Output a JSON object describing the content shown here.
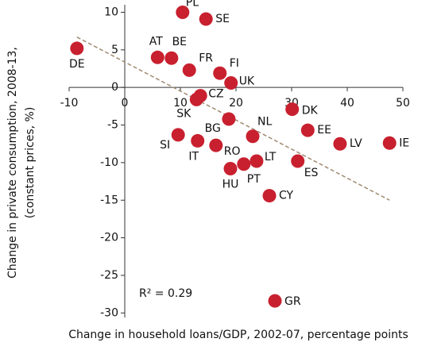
{
  "chart_data": {
    "type": "scatter",
    "x_label": "Change in household loans/GDP, 2002-07, percentage points",
    "y_label": [
      "Change in private consumption, 2008-13,",
      "(constant prices, %)"
    ],
    "annotation": "R² = 0.29",
    "labels": [
      "DE",
      "PL",
      "SE",
      "AT",
      "BE",
      "FR",
      "FI",
      "UK",
      "CZ",
      "SK",
      "DK",
      "BG",
      "NL",
      "EE",
      "LV",
      "IE",
      "SI",
      "IT",
      "RO",
      "LT",
      "ES",
      "HU",
      "PT",
      "CY",
      "GR"
    ],
    "x": [
      -8.6,
      10.4,
      14.6,
      5.9,
      8.4,
      11.6,
      17.1,
      19.1,
      13.6,
      12.9,
      30.1,
      18.7,
      23.0,
      32.9,
      38.7,
      47.6,
      9.6,
      13.1,
      16.4,
      23.7,
      31.1,
      19.0,
      21.4,
      26.0,
      27.0
    ],
    "values": [
      5.2,
      10.0,
      9.1,
      4.0,
      3.9,
      2.3,
      1.9,
      0.6,
      -1.1,
      -1.6,
      -2.9,
      -4.2,
      -6.5,
      -5.7,
      -7.5,
      -7.4,
      -6.3,
      -7.1,
      -7.7,
      -9.8,
      -9.8,
      -10.8,
      -10.2,
      -14.4,
      -28.4
    ],
    "color": "#c8202f",
    "trend": {
      "x": [
        -8.6,
        47.6
      ],
      "y": [
        6.7,
        -15.0
      ],
      "color": "#a08a70"
    },
    "xlim": [
      -10,
      50
    ],
    "ylim": [
      -30.6,
      11
    ],
    "xticks": [
      -10,
      0,
      10,
      20,
      30,
      40,
      50
    ],
    "yticks": [
      10,
      5,
      0,
      -5,
      -10,
      -15,
      -20,
      -25,
      -30
    ]
  }
}
